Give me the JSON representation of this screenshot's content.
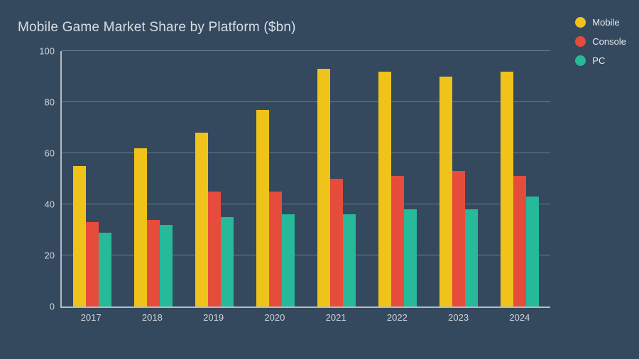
{
  "title": "Mobile Game Market Share by Platform ($bn)",
  "colors": {
    "background": "#35495e",
    "title_text": "#d8dee4",
    "axis": "#b4bdc6",
    "tick_text": "#cdd4db",
    "gridline": "rgba(255,255,255,0.28)"
  },
  "chart_data": {
    "type": "bar",
    "title": "Mobile Game Market Share by Platform ($bn)",
    "xlabel": "",
    "ylabel": "",
    "categories": [
      "2017",
      "2018",
      "2019",
      "2020",
      "2021",
      "2022",
      "2023",
      "2024"
    ],
    "series": [
      {
        "name": "Mobile",
        "color": "#efc319",
        "values": [
          55,
          62,
          68,
          77,
          93,
          92,
          90,
          92
        ]
      },
      {
        "name": "Console",
        "color": "#e64c3c",
        "values": [
          33,
          34,
          45,
          45,
          50,
          51,
          53,
          51
        ]
      },
      {
        "name": "PC",
        "color": "#26b99a",
        "values": [
          29,
          32,
          35,
          36,
          36,
          38,
          38,
          43
        ]
      }
    ],
    "ylim": [
      0,
      100
    ],
    "yticks": [
      0,
      20,
      40,
      60,
      80,
      100
    ],
    "grid": true,
    "legend_position": "top-right"
  }
}
